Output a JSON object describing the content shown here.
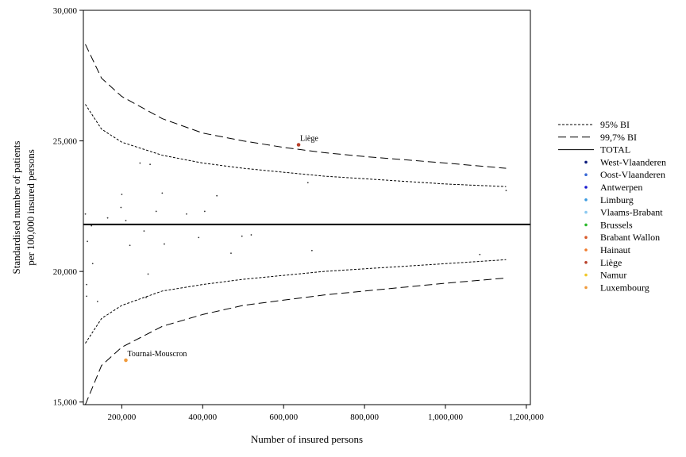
{
  "chart_data": {
    "type": "scatter",
    "title": "",
    "xlabel": "Number of insured persons",
    "ylabel_lines": [
      "Standardised number of patients",
      "per 100,000 insured persons"
    ],
    "xlim": [
      105000,
      1210000
    ],
    "ylim": [
      14900,
      30000
    ],
    "x_ticks": [
      200000,
      400000,
      600000,
      800000,
      1000000,
      1200000
    ],
    "x_tick_labels": [
      "200,000",
      "400,000",
      "600,000",
      "800,000",
      "1,000,000",
      "1,200,000"
    ],
    "y_ticks": [
      15000,
      20000,
      25000,
      30000
    ],
    "y_tick_labels": [
      "15,000",
      "20,000",
      "25,000",
      "30,000"
    ],
    "grid": false,
    "legend_position": "right",
    "total": 21800,
    "lines": [
      {
        "name": "95% BI",
        "style": "dotted",
        "color": "#000000",
        "upper": [
          [
            110000,
            26400
          ],
          [
            150000,
            25450
          ],
          [
            200000,
            24950
          ],
          [
            300000,
            24450
          ],
          [
            400000,
            24150
          ],
          [
            500000,
            23950
          ],
          [
            600000,
            23800
          ],
          [
            700000,
            23650
          ],
          [
            800000,
            23550
          ],
          [
            1000000,
            23350
          ],
          [
            1150000,
            23250
          ]
        ],
        "lower": [
          [
            110000,
            17250
          ],
          [
            150000,
            18200
          ],
          [
            200000,
            18700
          ],
          [
            300000,
            19250
          ],
          [
            400000,
            19500
          ],
          [
            500000,
            19700
          ],
          [
            600000,
            19850
          ],
          [
            700000,
            20000
          ],
          [
            800000,
            20100
          ],
          [
            1000000,
            20300
          ],
          [
            1150000,
            20450
          ]
        ]
      },
      {
        "name": "99,7% BI",
        "style": "dashed",
        "color": "#000000",
        "upper": [
          [
            110000,
            28700
          ],
          [
            150000,
            27400
          ],
          [
            200000,
            26700
          ],
          [
            300000,
            25850
          ],
          [
            400000,
            25300
          ],
          [
            500000,
            25000
          ],
          [
            600000,
            24750
          ],
          [
            700000,
            24550
          ],
          [
            800000,
            24400
          ],
          [
            1000000,
            24150
          ],
          [
            1150000,
            23950
          ]
        ],
        "lower": [
          [
            110000,
            14900
          ],
          [
            150000,
            16400
          ],
          [
            200000,
            17100
          ],
          [
            300000,
            17900
          ],
          [
            400000,
            18350
          ],
          [
            500000,
            18700
          ],
          [
            600000,
            18900
          ],
          [
            700000,
            19100
          ],
          [
            800000,
            19250
          ],
          [
            1000000,
            19550
          ],
          [
            1150000,
            19750
          ]
        ]
      },
      {
        "name": "TOTAL",
        "style": "solid",
        "color": "#000000"
      }
    ],
    "legend_series": [
      {
        "name": "West-Vlaanderen",
        "color": "#0a1a7a"
      },
      {
        "name": "Oost-Vlaanderen",
        "color": "#3a6ad6"
      },
      {
        "name": "Antwerpen",
        "color": "#1a1ad0"
      },
      {
        "name": "Limburg",
        "color": "#3a9ae0"
      },
      {
        "name": "Vlaams-Brabant",
        "color": "#8ac8f0"
      },
      {
        "name": "Brussels",
        "color": "#2ab82a"
      },
      {
        "name": "Brabant Wallon",
        "color": "#d85a2a"
      },
      {
        "name": "Hainaut",
        "color": "#f07a2a"
      },
      {
        "name": "Liège",
        "color": "#b8402a"
      },
      {
        "name": "Namur",
        "color": "#f0c82a"
      },
      {
        "name": "Luxembourg",
        "color": "#f09a3a"
      }
    ],
    "points": [
      {
        "x": 110000,
        "y": 22200,
        "color": "#333333"
      },
      {
        "x": 113000,
        "y": 19500,
        "color": "#333333"
      },
      {
        "x": 113000,
        "y": 19050,
        "color": "#333333"
      },
      {
        "x": 115000,
        "y": 21150,
        "color": "#333333"
      },
      {
        "x": 125000,
        "y": 21750,
        "color": "#333333"
      },
      {
        "x": 128000,
        "y": 20300,
        "color": "#333333"
      },
      {
        "x": 140000,
        "y": 18850,
        "color": "#333333"
      },
      {
        "x": 165000,
        "y": 22050,
        "color": "#333333"
      },
      {
        "x": 198000,
        "y": 22450,
        "color": "#333333"
      },
      {
        "x": 200000,
        "y": 22950,
        "color": "#333333"
      },
      {
        "x": 210000,
        "y": 21950,
        "color": "#333333"
      },
      {
        "x": 220000,
        "y": 21000,
        "color": "#333333"
      },
      {
        "x": 245000,
        "y": 24150,
        "color": "#333333"
      },
      {
        "x": 255000,
        "y": 21550,
        "color": "#333333"
      },
      {
        "x": 260000,
        "y": 19000,
        "color": "#333333"
      },
      {
        "x": 265000,
        "y": 19900,
        "color": "#333333"
      },
      {
        "x": 270000,
        "y": 24100,
        "color": "#333333"
      },
      {
        "x": 285000,
        "y": 22300,
        "color": "#333333"
      },
      {
        "x": 300000,
        "y": 23000,
        "color": "#333333"
      },
      {
        "x": 305000,
        "y": 21050,
        "color": "#333333"
      },
      {
        "x": 360000,
        "y": 22200,
        "color": "#333333"
      },
      {
        "x": 390000,
        "y": 21300,
        "color": "#333333"
      },
      {
        "x": 405000,
        "y": 22300,
        "color": "#333333"
      },
      {
        "x": 435000,
        "y": 22900,
        "color": "#333333"
      },
      {
        "x": 470000,
        "y": 20700,
        "color": "#333333"
      },
      {
        "x": 497000,
        "y": 21350,
        "color": "#333333"
      },
      {
        "x": 520000,
        "y": 21400,
        "color": "#333333"
      },
      {
        "x": 660000,
        "y": 23400,
        "color": "#333333"
      },
      {
        "x": 670000,
        "y": 20800,
        "color": "#333333"
      },
      {
        "x": 1085000,
        "y": 20650,
        "color": "#333333"
      },
      {
        "x": 1150000,
        "y": 23100,
        "color": "#333333"
      },
      {
        "x": 637000,
        "y": 24850,
        "color": "#b8402a",
        "label": "Liège"
      },
      {
        "x": 210000,
        "y": 16600,
        "color": "#f09a3a",
        "label": "Tournai-Mouscron"
      }
    ]
  }
}
